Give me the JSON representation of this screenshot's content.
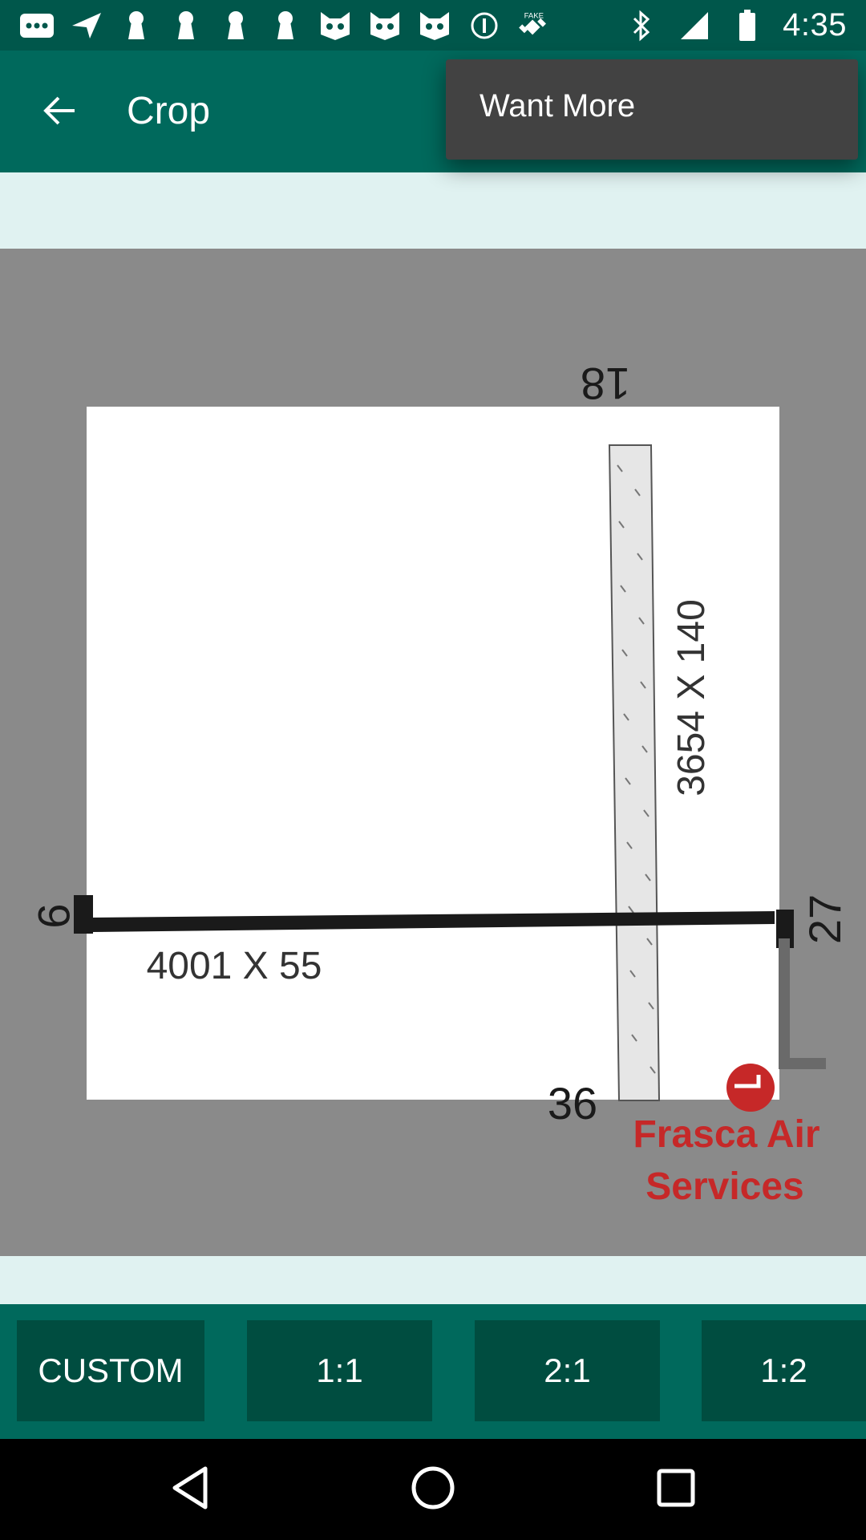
{
  "status_bar": {
    "time": "4:35",
    "left_icons": [
      "more-dots-icon",
      "send-icon",
      "keyhole-icon",
      "keyhole-icon",
      "keyhole-icon",
      "keyhole-icon",
      "cat-face-icon",
      "cat-face-icon",
      "cat-face-icon",
      "info-circle-icon",
      "satellite-fake-icon"
    ],
    "fake_label": "FAKE",
    "right_icons": [
      "bluetooth-icon",
      "signal-icon",
      "battery-icon"
    ]
  },
  "app_bar": {
    "back_icon": "arrow-back-icon",
    "title": "Crop"
  },
  "overflow_menu": {
    "items": [
      {
        "label": "Want More"
      }
    ]
  },
  "image": {
    "runway_labels": {
      "top": "18",
      "left": "9",
      "right": "27",
      "bottom": "36",
      "horizontal_dims": "4001 X 55",
      "vertical_dims": "3654 X 140"
    },
    "brand_line1": "Frasca Air",
    "brand_line2": "Services"
  },
  "aspect_buttons": [
    {
      "label": "CUSTOM"
    },
    {
      "label": "1:1"
    },
    {
      "label": "2:1"
    },
    {
      "label": "1:2"
    }
  ],
  "nav_bar": {
    "icons": [
      "back-triangle-icon",
      "home-circle-icon",
      "recents-square-icon"
    ]
  },
  "colors": {
    "status_bar": "#00574b",
    "app_bar": "#00695c",
    "button": "#004d40",
    "band": "#e0f2f1",
    "crop_bg": "#8a8a8a",
    "brand_red": "#c62828"
  }
}
